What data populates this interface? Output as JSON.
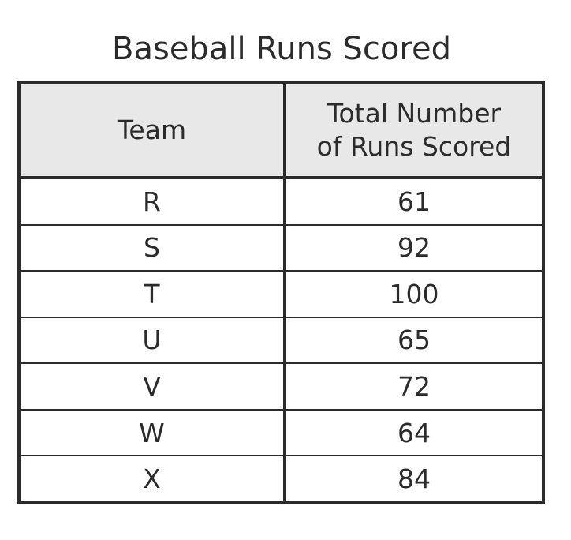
{
  "title": "Baseball Runs Scored",
  "table": {
    "headers": {
      "team": "Team",
      "runs_line1": "Total Number",
      "runs_line2": "of Runs Scored"
    },
    "rows": [
      {
        "team": "R",
        "runs": "61"
      },
      {
        "team": "S",
        "runs": "92"
      },
      {
        "team": "T",
        "runs": "100"
      },
      {
        "team": "U",
        "runs": "65"
      },
      {
        "team": "V",
        "runs": "72"
      },
      {
        "team": "W",
        "runs": "64"
      },
      {
        "team": "X",
        "runs": "84"
      }
    ]
  }
}
